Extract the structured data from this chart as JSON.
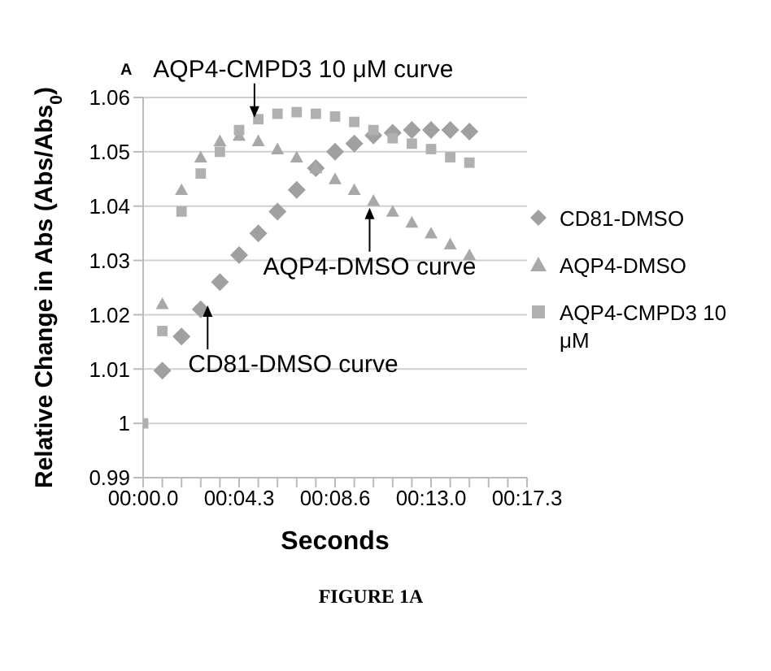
{
  "chart_data": {
    "type": "scatter",
    "ylabel": "Relative Change in Abs (Abs/Abs$_{0}$)",
    "xlabel": "Seconds",
    "categories": [
      "00:00.0",
      null,
      null,
      null,
      null,
      "00:04.3",
      null,
      null,
      null,
      null,
      "00:08.6",
      null,
      null,
      null,
      null,
      "00:13.0",
      null,
      null,
      null,
      null,
      "00:17.3"
    ],
    "ylim": [
      0.99,
      1.06
    ],
    "yticks": [
      0.99,
      1,
      1.01,
      1.02,
      1.03,
      1.04,
      1.05,
      1.06
    ],
    "grid": "y",
    "legend": "right",
    "series": [
      {
        "name": "CD81-DMSO",
        "color": "#a0a0a0",
        "marker": "diamond",
        "values": [
          null,
          1.0097,
          1.016,
          1.021,
          1.026,
          1.031,
          1.035,
          1.039,
          1.043,
          1.047,
          1.05,
          1.0515,
          1.053,
          1.0535,
          1.054,
          1.054,
          1.054,
          1.0537,
          null,
          null,
          null
        ]
      },
      {
        "name": "AQP4-DMSO",
        "color": "#a8a8a8",
        "marker": "triangle",
        "values": [
          null,
          1.022,
          1.043,
          1.049,
          1.052,
          1.053,
          1.052,
          1.0505,
          1.049,
          1.047,
          1.045,
          1.043,
          1.041,
          1.039,
          1.037,
          1.035,
          1.033,
          1.031,
          null,
          null,
          null
        ]
      },
      {
        "name": "AQP4-CMPD3 10 μM",
        "color": "#b0b0b0",
        "marker": "square",
        "values": [
          1,
          1.017,
          1.039,
          1.046,
          1.05,
          1.054,
          1.056,
          1.057,
          1.0573,
          1.057,
          1.0565,
          1.0555,
          1.054,
          1.0525,
          1.0515,
          1.0505,
          1.049,
          1.048,
          null,
          null,
          null
        ]
      }
    ],
    "annotations": [
      "A",
      "AQP4-CMPD3 10 μM curve",
      "AQP4-DMSO curve",
      "CD81-DMSO curve",
      "FIGURE 1A"
    ]
  }
}
